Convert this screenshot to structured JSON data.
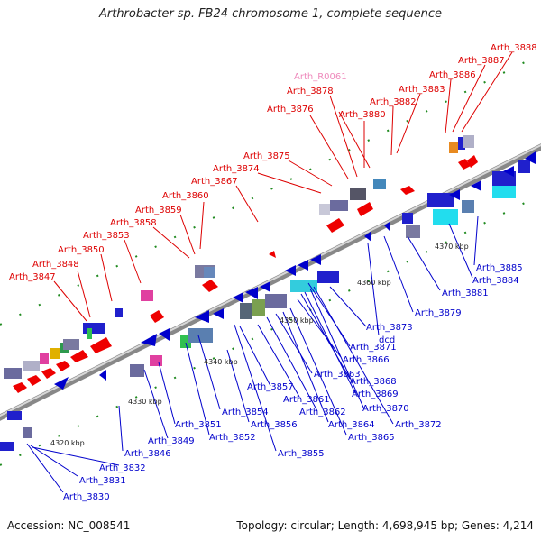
{
  "title": "Arthrobacter sp. FB24 chromosome 1, complete sequence",
  "footer": {
    "accession": "Accession: NC_008541",
    "summary": "Topology: circular; Length: 4,698,945 bp; Genes: 4,214"
  },
  "colors": {
    "forward_label": "#dd0000",
    "reverse_label": "#0000cc",
    "rna_label": "#ee88bb",
    "backbone": "#888888"
  },
  "kbp_ticks": [
    "4320 kbp",
    "4330 kbp",
    "4340 kbp",
    "4350 kbp",
    "4360 kbp",
    "4370 kbp"
  ],
  "top_labels": [
    "Arth_3847",
    "Arth_3848",
    "Arth_3850",
    "Arth_3853",
    "Arth_3858",
    "Arth_3859",
    "Arth_3860",
    "Arth_3867",
    "Arth_3874",
    "Arth_3875",
    "Arth_3876",
    "Arth_3878",
    "Arth_R0061",
    "Arth_3880",
    "Arth_3882",
    "Arth_3883",
    "Arth_3886",
    "Arth_3887",
    "Arth_3888"
  ],
  "bottom_labels": [
    "Arth_3830",
    "Arth_3831",
    "Arth_3832",
    "Arth_3846",
    "Arth_3849",
    "Arth_3851",
    "Arth_3852",
    "Arth_3854",
    "Arth_3855",
    "Arth_3856",
    "Arth_3857",
    "Arth_3861",
    "Arth_3862",
    "Arth_3863",
    "Arth_3864",
    "Arth_3865",
    "Arth_3866",
    "Arth_3868",
    "Arth_3869",
    "Arth_3870",
    "Arth_3871",
    "Arth_3872",
    "Arth_3873",
    "dcd",
    "Arth_3879",
    "Arth_3881",
    "Arth_3884",
    "Arth_3885"
  ]
}
